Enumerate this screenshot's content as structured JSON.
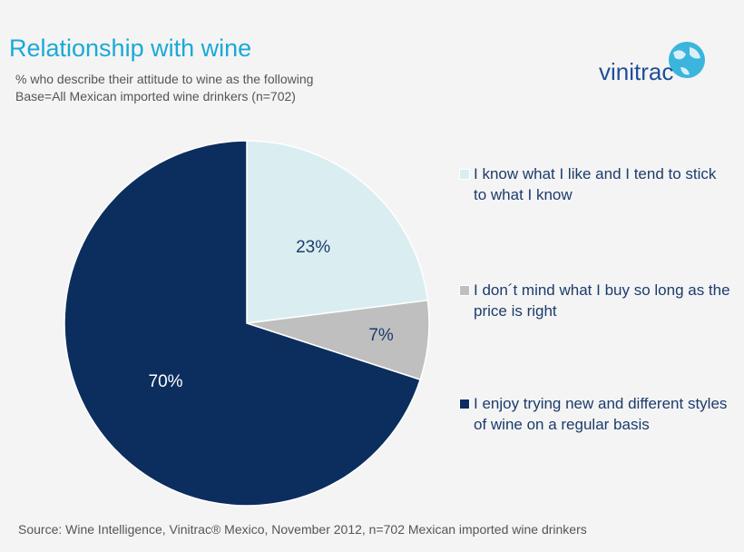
{
  "chart_data": {
    "type": "pie",
    "title": "Relationship with wine",
    "subtitle": "% who describe their attitude to wine as the following",
    "base": "Base=All Mexican imported wine drinkers (n=702)",
    "logo": "vinitrac",
    "source": "Source: Wine Intelligence, Vinitrac® Mexico, November 2012, n=702 Mexican imported wine drinkers",
    "categories": [
      "I know what I like and I tend to stick to what I know",
      "I don´t mind what I buy so long as the price is right",
      "I enjoy trying new and different styles of wine on a regular basis"
    ],
    "values": [
      23,
      7,
      70
    ],
    "value_labels": [
      "23%",
      "7%",
      "70%"
    ],
    "colors": [
      "#daeef1",
      "#bfbfbf",
      "#0c2e5e"
    ],
    "label_colors": [
      "#1c3c6c",
      "#1c3c6c",
      "#ffffff"
    ],
    "legend": "right"
  }
}
